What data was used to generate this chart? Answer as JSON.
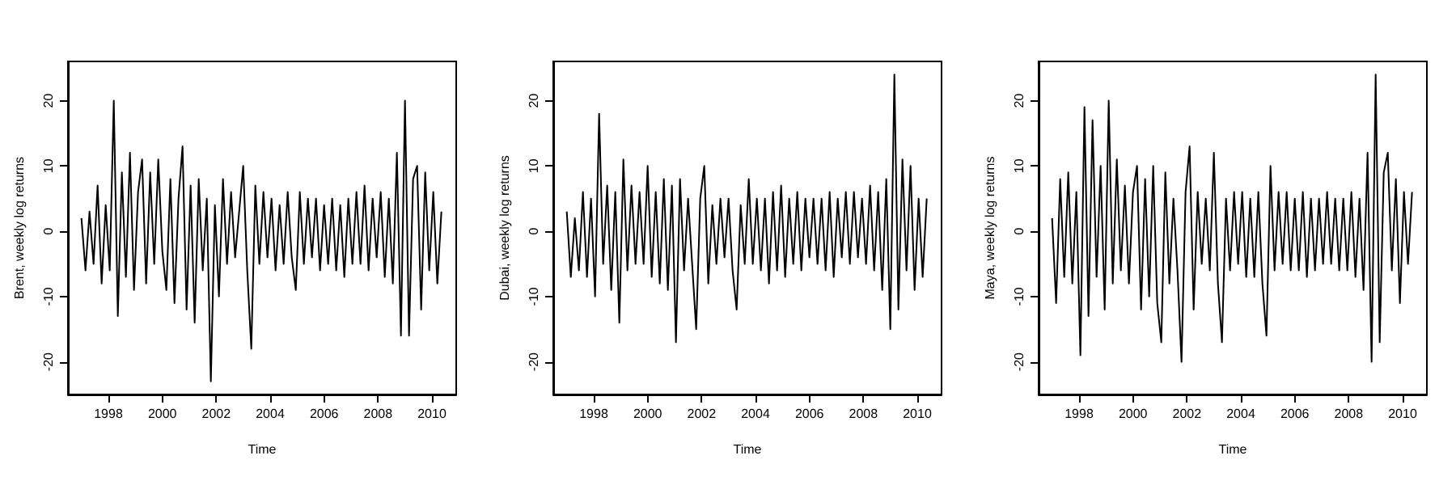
{
  "chart_data": [
    {
      "type": "line",
      "xlabel": "Time",
      "ylabel": "Brent, weekly log returns",
      "grid": false,
      "xlim": [
        1996.5,
        2010.9
      ],
      "xticks": [
        1998,
        2000,
        2002,
        2004,
        2006,
        2008,
        2010
      ],
      "ylim": [
        -25,
        26
      ],
      "yticks": [
        -20,
        -10,
        0,
        10,
        20
      ],
      "x": [
        1997,
        1997.15,
        1997.3,
        1997.45,
        1997.6,
        1997.75,
        1997.9,
        1998.05,
        1998.2,
        1998.35,
        1998.5,
        1998.65,
        1998.8,
        1998.95,
        1999.1,
        1999.25,
        1999.4,
        1999.55,
        1999.7,
        1999.85,
        2000,
        2000.15,
        2000.3,
        2000.45,
        2000.6,
        2000.75,
        2000.9,
        2001.05,
        2001.2,
        2001.35,
        2001.5,
        2001.65,
        2001.8,
        2001.95,
        2002.1,
        2002.25,
        2002.4,
        2002.55,
        2002.7,
        2002.85,
        2003,
        2003.15,
        2003.3,
        2003.45,
        2003.6,
        2003.75,
        2003.9,
        2004.05,
        2004.2,
        2004.35,
        2004.5,
        2004.65,
        2004.8,
        2004.95,
        2005.1,
        2005.25,
        2005.4,
        2005.55,
        2005.7,
        2005.85,
        2006,
        2006.15,
        2006.3,
        2006.45,
        2006.6,
        2006.75,
        2006.9,
        2007.05,
        2007.2,
        2007.35,
        2007.5,
        2007.65,
        2007.8,
        2007.95,
        2008.1,
        2008.25,
        2008.4,
        2008.55,
        2008.7,
        2008.85,
        2009,
        2009.15,
        2009.3,
        2009.45,
        2009.6,
        2009.75,
        2009.9,
        2010.05,
        2010.2,
        2010.35
      ],
      "series": [
        {
          "color": "#000000",
          "values": [
            2,
            -6,
            3,
            -5,
            7,
            -8,
            4,
            -6,
            20,
            -13,
            9,
            -7,
            12,
            -9,
            6,
            11,
            -8,
            9,
            -5,
            11,
            -3,
            -9,
            8,
            -11,
            5,
            13,
            -12,
            7,
            -14,
            8,
            -6,
            5,
            -23,
            4,
            -10,
            8,
            -5,
            6,
            -4,
            3,
            10,
            -6,
            -18,
            7,
            -5,
            6,
            -4,
            5,
            -6,
            4,
            -5,
            6,
            -4,
            -9,
            6,
            -5,
            5,
            -4,
            5,
            -6,
            4,
            -5,
            5,
            -6,
            4,
            -7,
            5,
            -5,
            6,
            -5,
            7,
            -6,
            5,
            -4,
            6,
            -7,
            5,
            -8,
            12,
            -16,
            20,
            -16,
            8,
            10,
            -12,
            9,
            -6,
            6,
            -8,
            3
          ]
        }
      ]
    },
    {
      "type": "line",
      "xlabel": "Time",
      "ylabel": "Dubai, weekly log returns",
      "grid": false,
      "xlim": [
        1996.5,
        2010.9
      ],
      "xticks": [
        1998,
        2000,
        2002,
        2004,
        2006,
        2008,
        2010
      ],
      "ylim": [
        -25,
        26
      ],
      "yticks": [
        -20,
        -10,
        0,
        10,
        20
      ],
      "x": [
        1997,
        1997.15,
        1997.3,
        1997.45,
        1997.6,
        1997.75,
        1997.9,
        1998.05,
        1998.2,
        1998.35,
        1998.5,
        1998.65,
        1998.8,
        1998.95,
        1999.1,
        1999.25,
        1999.4,
        1999.55,
        1999.7,
        1999.85,
        2000,
        2000.15,
        2000.3,
        2000.45,
        2000.6,
        2000.75,
        2000.9,
        2001.05,
        2001.2,
        2001.35,
        2001.5,
        2001.65,
        2001.8,
        2001.95,
        2002.1,
        2002.25,
        2002.4,
        2002.55,
        2002.7,
        2002.85,
        2003,
        2003.15,
        2003.3,
        2003.45,
        2003.6,
        2003.75,
        2003.9,
        2004.05,
        2004.2,
        2004.35,
        2004.5,
        2004.65,
        2004.8,
        2004.95,
        2005.1,
        2005.25,
        2005.4,
        2005.55,
        2005.7,
        2005.85,
        2006,
        2006.15,
        2006.3,
        2006.45,
        2006.6,
        2006.75,
        2006.9,
        2007.05,
        2007.2,
        2007.35,
        2007.5,
        2007.65,
        2007.8,
        2007.95,
        2008.1,
        2008.25,
        2008.4,
        2008.55,
        2008.7,
        2008.85,
        2009,
        2009.15,
        2009.3,
        2009.45,
        2009.6,
        2009.75,
        2009.9,
        2010.05,
        2010.2,
        2010.35
      ],
      "series": [
        {
          "color": "#000000",
          "values": [
            3,
            -7,
            2,
            -6,
            6,
            -7,
            5,
            -10,
            18,
            -5,
            7,
            -9,
            6,
            -14,
            11,
            -6,
            7,
            -5,
            6,
            -5,
            10,
            -7,
            6,
            -8,
            8,
            -9,
            7,
            -17,
            8,
            -6,
            5,
            -5,
            -15,
            5,
            10,
            -8,
            4,
            -5,
            5,
            -4,
            5,
            -6,
            -12,
            4,
            -5,
            8,
            -5,
            5,
            -6,
            5,
            -8,
            6,
            -6,
            7,
            -7,
            5,
            -5,
            6,
            -6,
            5,
            -4,
            5,
            -5,
            5,
            -6,
            6,
            -7,
            5,
            -4,
            6,
            -5,
            6,
            -4,
            5,
            -5,
            7,
            -6,
            6,
            -9,
            8,
            -15,
            24,
            -12,
            11,
            -6,
            10,
            -9,
            5,
            -7,
            5
          ]
        }
      ]
    },
    {
      "type": "line",
      "xlabel": "Time",
      "ylabel": "Maya, weekly log returns",
      "grid": false,
      "xlim": [
        1996.5,
        2010.9
      ],
      "xticks": [
        1998,
        2000,
        2002,
        2004,
        2006,
        2008,
        2010
      ],
      "ylim": [
        -25,
        26
      ],
      "yticks": [
        -20,
        -10,
        0,
        10,
        20
      ],
      "x": [
        1997,
        1997.15,
        1997.3,
        1997.45,
        1997.6,
        1997.75,
        1997.9,
        1998.05,
        1998.2,
        1998.35,
        1998.5,
        1998.65,
        1998.8,
        1998.95,
        1999.1,
        1999.25,
        1999.4,
        1999.55,
        1999.7,
        1999.85,
        2000,
        2000.15,
        2000.3,
        2000.45,
        2000.6,
        2000.75,
        2000.9,
        2001.05,
        2001.2,
        2001.35,
        2001.5,
        2001.65,
        2001.8,
        2001.95,
        2002.1,
        2002.25,
        2002.4,
        2002.55,
        2002.7,
        2002.85,
        2003,
        2003.15,
        2003.3,
        2003.45,
        2003.6,
        2003.75,
        2003.9,
        2004.05,
        2004.2,
        2004.35,
        2004.5,
        2004.65,
        2004.8,
        2004.95,
        2005.1,
        2005.25,
        2005.4,
        2005.55,
        2005.7,
        2005.85,
        2006,
        2006.15,
        2006.3,
        2006.45,
        2006.6,
        2006.75,
        2006.9,
        2007.05,
        2007.2,
        2007.35,
        2007.5,
        2007.65,
        2007.8,
        2007.95,
        2008.1,
        2008.25,
        2008.4,
        2008.55,
        2008.7,
        2008.85,
        2009,
        2009.15,
        2009.3,
        2009.45,
        2009.6,
        2009.75,
        2009.9,
        2010.05,
        2010.2,
        2010.35
      ],
      "series": [
        {
          "color": "#000000",
          "values": [
            2,
            -11,
            8,
            -7,
            9,
            -8,
            6,
            -19,
            19,
            -13,
            17,
            -7,
            10,
            -12,
            20,
            -8,
            11,
            -6,
            7,
            -8,
            6,
            10,
            -12,
            8,
            -10,
            10,
            -11,
            -17,
            9,
            -8,
            5,
            -6,
            -20,
            6,
            13,
            -12,
            6,
            -5,
            5,
            -6,
            12,
            -8,
            -17,
            5,
            -6,
            6,
            -5,
            6,
            -7,
            5,
            -7,
            6,
            -8,
            -16,
            10,
            -6,
            6,
            -5,
            6,
            -6,
            5,
            -6,
            6,
            -7,
            5,
            -6,
            5,
            -5,
            6,
            -5,
            5,
            -6,
            5,
            -6,
            6,
            -7,
            5,
            -9,
            12,
            -20,
            24,
            -17,
            9,
            12,
            -6,
            8,
            -11,
            6,
            -5,
            6
          ]
        }
      ]
    }
  ]
}
